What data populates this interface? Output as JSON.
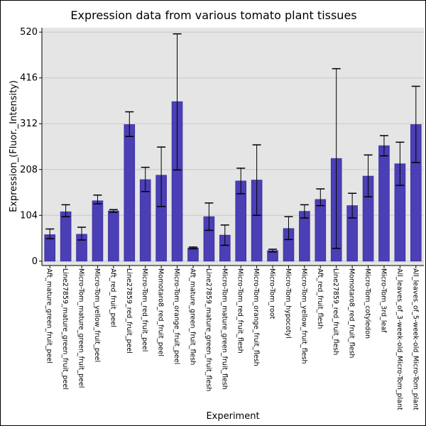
{
  "chart_data": {
    "type": "bar",
    "title": "Expression data from various tomato plant tissues",
    "xlabel": "Experiment",
    "ylabel": "Expression_(Fluor._Intensity)",
    "ylim": [
      -10,
      530
    ],
    "yticks": [
      0,
      104,
      208,
      312,
      416,
      520
    ],
    "grid": true,
    "colors": {
      "bar": "#4b3fb5",
      "bar_edge": "#3a2f9c",
      "plot_bg": "#e5e5e5",
      "grid": "#c8c8c8",
      "error_bar": "#000000"
    },
    "categories": [
      "Aft_mature_green_fruit_peel",
      "Line27859_mature_green_fruit_peel",
      "Micro-Tom_mature_green_fruit_peel",
      "Micro-Tom_yellow_fruit_peel",
      "Aft_red_fruit_peel",
      "Line27859_red_fruit_peel",
      "Micro-Tom_red_fruit_peel",
      "Momotaro8_red_fruit_peel",
      "Micro-Tom_orange_fruit_peel",
      "Aft_mature_green_fruit_flesh",
      "Line27859_mature_green_fruit_flesh",
      "Micro-Tom_mature_green_fruit_flesh",
      "Micro-Tom_red_fruit_flesh",
      "Micro-Tom_orange_fruit_flesh",
      "Micro-Tom_root",
      "Micro-Tom_hypocotyl",
      "Micro-Tom_yellow_fruit_flesh",
      "Aft_red_fruit_flesh",
      "Line27859_red_fruit_flesh",
      "Momotaro8_red_fruit_flesh",
      "Micro-Tom_cotyledon",
      "Micro-Tom_3rd_leaf",
      "All_leaves_of_3-week-old_Micro-Tom_plant",
      "All_leaves_of_5-week-old_Micro-Tom_plant"
    ],
    "values": [
      60,
      112,
      61,
      137,
      114,
      310,
      185,
      195,
      362,
      30,
      101,
      59,
      182,
      184,
      24,
      74,
      113,
      140,
      233,
      126,
      193,
      262,
      221,
      310
    ],
    "error_low": [
      51,
      101,
      48,
      130,
      111,
      283,
      158,
      124,
      207,
      28,
      70,
      36,
      153,
      104,
      21,
      49,
      98,
      126,
      29,
      98,
      146,
      239,
      172,
      224
    ],
    "error_high": [
      73,
      128,
      77,
      150,
      117,
      339,
      213,
      259,
      516,
      32,
      132,
      82,
      211,
      264,
      27,
      101,
      128,
      164,
      437,
      154,
      241,
      285,
      270,
      397
    ]
  }
}
